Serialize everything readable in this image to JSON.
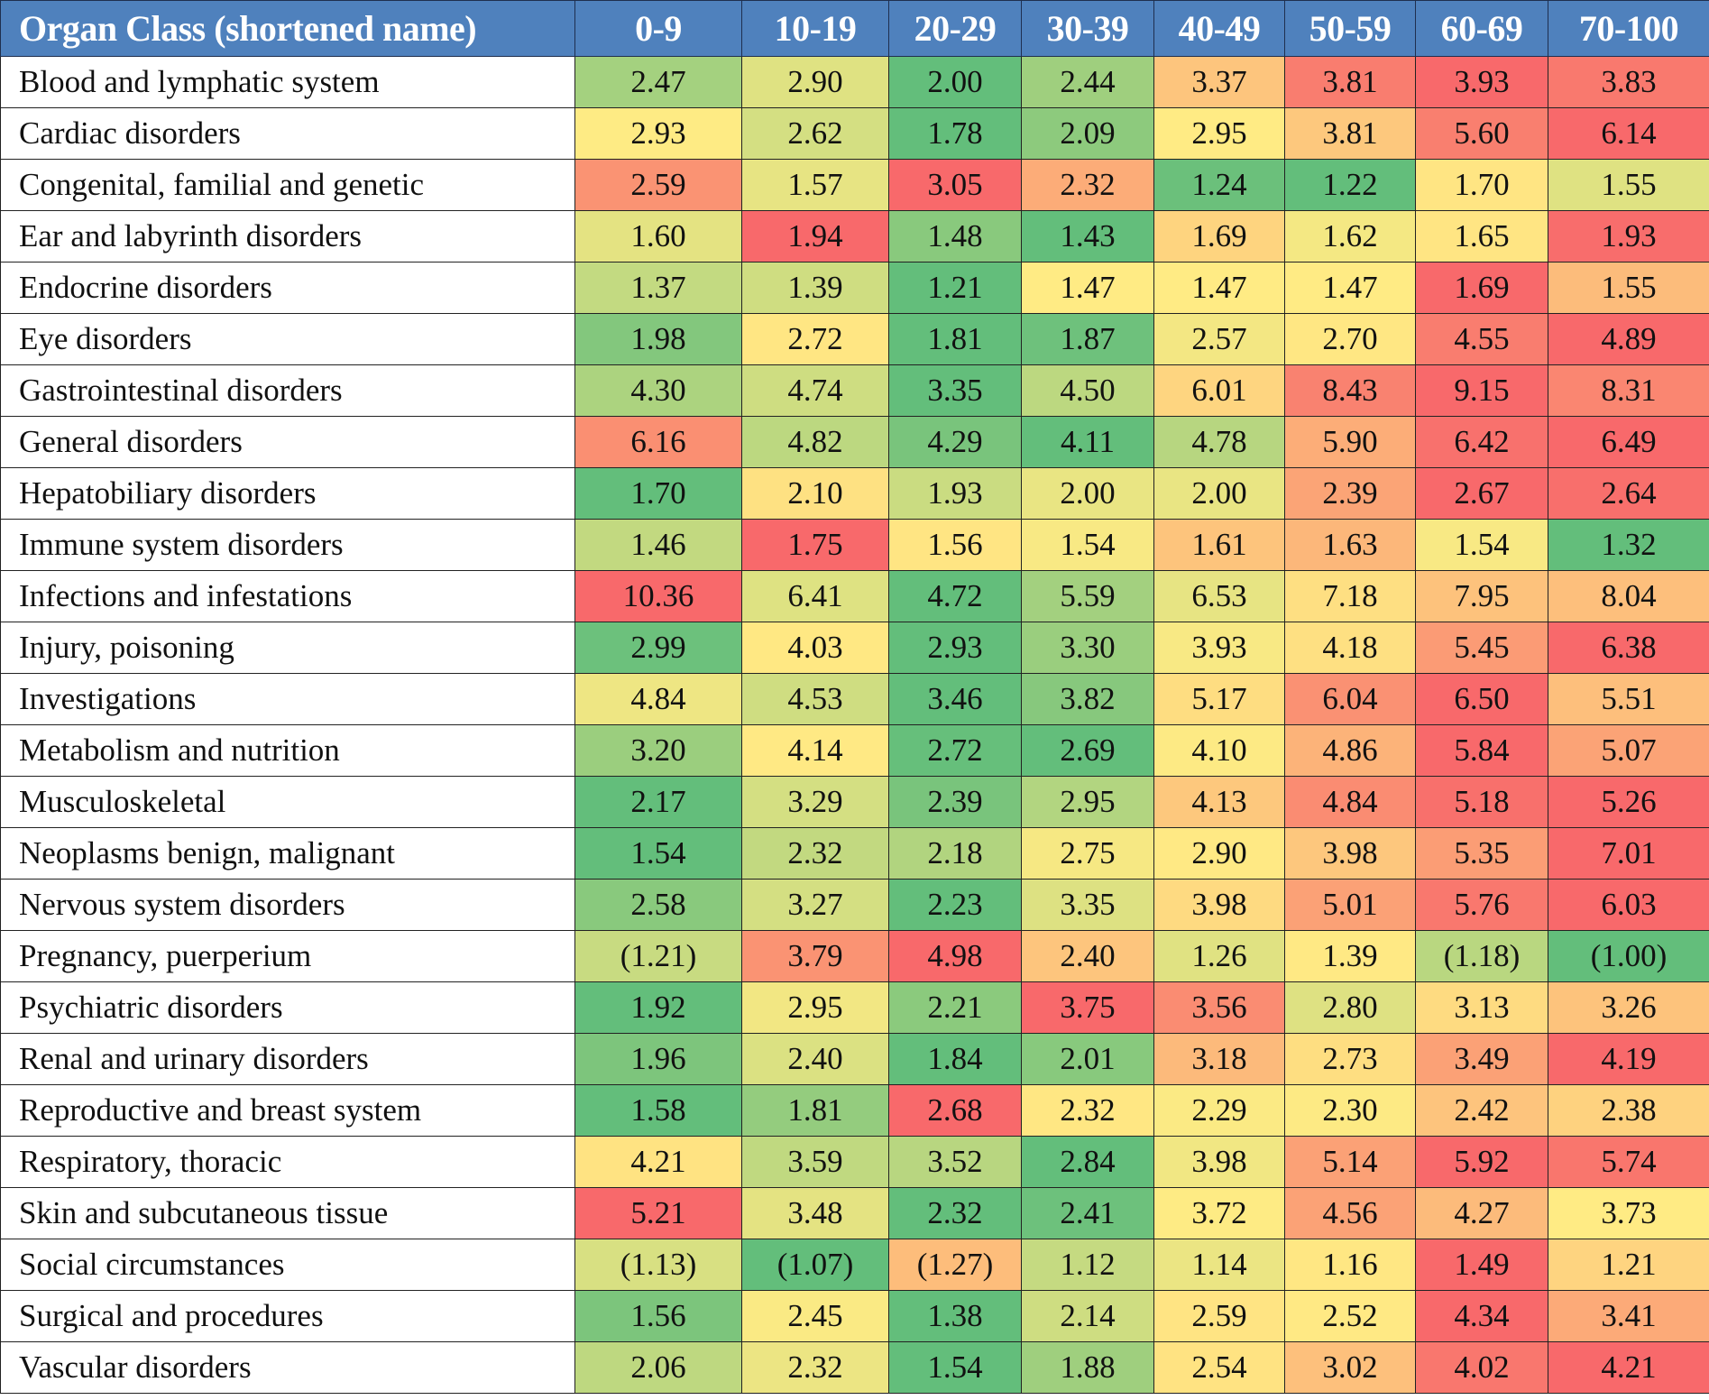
{
  "chart_data": {
    "type": "heatmap",
    "title": "",
    "header_first": "Organ Class (shortened name)",
    "columns": [
      "0-9",
      "10-19",
      "20-29",
      "30-39",
      "40-49",
      "50-59",
      "60-69",
      "70-100"
    ],
    "color_scale": {
      "low": "#63BE7B",
      "mid": "#FFEB84",
      "high": "#F8696B",
      "scope": "per-row"
    },
    "header_color": "#4F81BD",
    "rows": [
      {
        "name": "Blood and lymphatic system",
        "values": [
          "2.47",
          "2.90",
          "2.00",
          "2.44",
          "3.37",
          "3.81",
          "3.93",
          "3.83"
        ]
      },
      {
        "name": "Cardiac disorders",
        "values": [
          "2.93",
          "2.62",
          "1.78",
          "2.09",
          "2.95",
          "3.81",
          "5.60",
          "6.14"
        ]
      },
      {
        "name": "Congenital, familial and genetic",
        "values": [
          "2.59",
          "1.57",
          "3.05",
          "2.32",
          "1.24",
          "1.22",
          "1.70",
          "1.55"
        ]
      },
      {
        "name": "Ear and labyrinth disorders",
        "values": [
          "1.60",
          "1.94",
          "1.48",
          "1.43",
          "1.69",
          "1.62",
          "1.65",
          "1.93"
        ]
      },
      {
        "name": "Endocrine disorders",
        "values": [
          "1.37",
          "1.39",
          "1.21",
          "1.47",
          "1.47",
          "1.47",
          "1.69",
          "1.55"
        ]
      },
      {
        "name": "Eye disorders",
        "values": [
          "1.98",
          "2.72",
          "1.81",
          "1.87",
          "2.57",
          "2.70",
          "4.55",
          "4.89"
        ]
      },
      {
        "name": "Gastrointestinal disorders",
        "values": [
          "4.30",
          "4.74",
          "3.35",
          "4.50",
          "6.01",
          "8.43",
          "9.15",
          "8.31"
        ]
      },
      {
        "name": "General disorders",
        "values": [
          "6.16",
          "4.82",
          "4.29",
          "4.11",
          "4.78",
          "5.90",
          "6.42",
          "6.49"
        ]
      },
      {
        "name": "Hepatobiliary disorders",
        "values": [
          "1.70",
          "2.10",
          "1.93",
          "2.00",
          "2.00",
          "2.39",
          "2.67",
          "2.64"
        ]
      },
      {
        "name": "Immune system disorders",
        "values": [
          "1.46",
          "1.75",
          "1.56",
          "1.54",
          "1.61",
          "1.63",
          "1.54",
          "1.32"
        ]
      },
      {
        "name": "Infections and infestations",
        "values": [
          "10.36",
          "6.41",
          "4.72",
          "5.59",
          "6.53",
          "7.18",
          "7.95",
          "8.04"
        ]
      },
      {
        "name": "Injury, poisoning",
        "values": [
          "2.99",
          "4.03",
          "2.93",
          "3.30",
          "3.93",
          "4.18",
          "5.45",
          "6.38"
        ]
      },
      {
        "name": "Investigations",
        "values": [
          "4.84",
          "4.53",
          "3.46",
          "3.82",
          "5.17",
          "6.04",
          "6.50",
          "5.51"
        ]
      },
      {
        "name": "Metabolism and nutrition",
        "values": [
          "3.20",
          "4.14",
          "2.72",
          "2.69",
          "4.10",
          "4.86",
          "5.84",
          "5.07"
        ]
      },
      {
        "name": "Musculoskeletal",
        "values": [
          "2.17",
          "3.29",
          "2.39",
          "2.95",
          "4.13",
          "4.84",
          "5.18",
          "5.26"
        ]
      },
      {
        "name": "Neoplasms benign, malignant",
        "values": [
          "1.54",
          "2.32",
          "2.18",
          "2.75",
          "2.90",
          "3.98",
          "5.35",
          "7.01"
        ]
      },
      {
        "name": "Nervous system disorders",
        "values": [
          "2.58",
          "3.27",
          "2.23",
          "3.35",
          "3.98",
          "5.01",
          "5.76",
          "6.03"
        ]
      },
      {
        "name": "Pregnancy, puerperium",
        "values": [
          "(1.21)",
          "3.79",
          "4.98",
          "2.40",
          "1.26",
          "1.39",
          "(1.18)",
          "(1.00)"
        ]
      },
      {
        "name": "Psychiatric disorders",
        "values": [
          "1.92",
          "2.95",
          "2.21",
          "3.75",
          "3.56",
          "2.80",
          "3.13",
          "3.26"
        ]
      },
      {
        "name": "Renal and urinary disorders",
        "values": [
          "1.96",
          "2.40",
          "1.84",
          "2.01",
          "3.18",
          "2.73",
          "3.49",
          "4.19"
        ]
      },
      {
        "name": "Reproductive and breast system",
        "values": [
          "1.58",
          "1.81",
          "2.68",
          "2.32",
          "2.29",
          "2.30",
          "2.42",
          "2.38"
        ]
      },
      {
        "name": "Respiratory, thoracic",
        "values": [
          "4.21",
          "3.59",
          "3.52",
          "2.84",
          "3.98",
          "5.14",
          "5.92",
          "5.74"
        ]
      },
      {
        "name": "Skin and subcutaneous tissue",
        "values": [
          "5.21",
          "3.48",
          "2.32",
          "2.41",
          "3.72",
          "4.56",
          "4.27",
          "3.73"
        ]
      },
      {
        "name": "Social circumstances",
        "values": [
          "(1.13)",
          "(1.07)",
          "(1.27)",
          "1.12",
          "1.14",
          "1.16",
          "1.49",
          "1.21"
        ]
      },
      {
        "name": "Surgical and procedures",
        "values": [
          "1.56",
          "2.45",
          "1.38",
          "2.14",
          "2.59",
          "2.52",
          "4.34",
          "3.41"
        ]
      },
      {
        "name": "Vascular disorders",
        "values": [
          "2.06",
          "2.32",
          "1.54",
          "1.88",
          "2.54",
          "3.02",
          "4.02",
          "4.21"
        ]
      }
    ]
  }
}
